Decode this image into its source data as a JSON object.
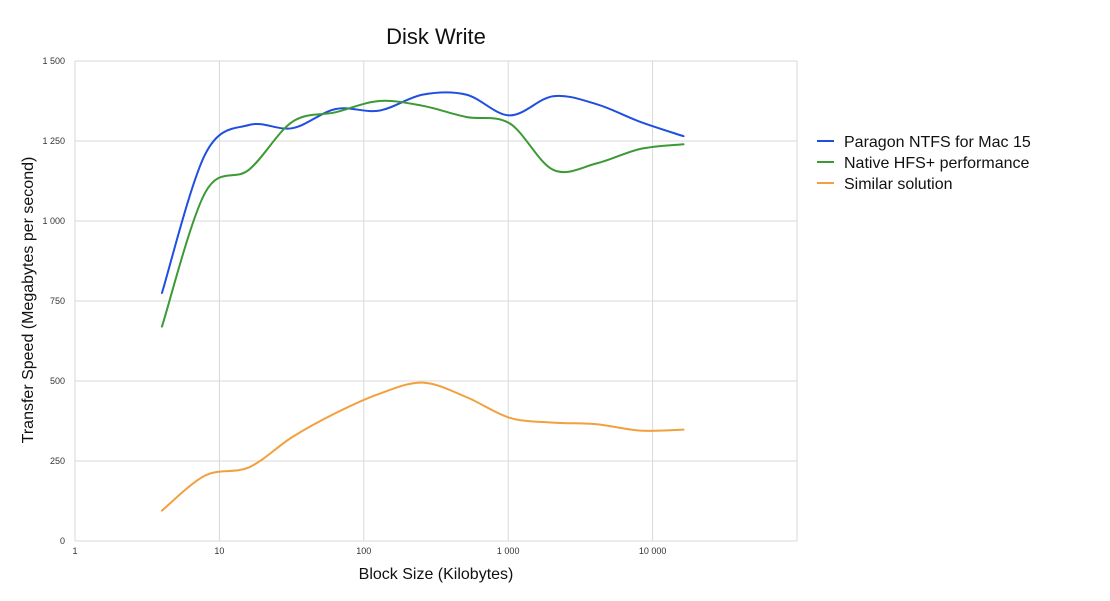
{
  "chart_data": {
    "type": "line",
    "title": "Disk Write",
    "xlabel": "Block Size (Kilobytes)",
    "ylabel": "Transfer Speed (Megabytes per second)",
    "x_scale": "log",
    "xlim": [
      1,
      100000
    ],
    "ylim": [
      0,
      1500
    ],
    "grid": true,
    "legend_position": "right",
    "x_ticks": [
      {
        "value": 1,
        "label": "1"
      },
      {
        "value": 10,
        "label": "10"
      },
      {
        "value": 100,
        "label": "100"
      },
      {
        "value": 1000,
        "label": "1 000"
      },
      {
        "value": 10000,
        "label": "10 000"
      }
    ],
    "x_gridlines": [
      1,
      10,
      100,
      1000,
      10000,
      100000
    ],
    "y_ticks": [
      {
        "value": 0,
        "label": "0"
      },
      {
        "value": 250,
        "label": "250"
      },
      {
        "value": 500,
        "label": "500"
      },
      {
        "value": 750,
        "label": "750"
      },
      {
        "value": 1000,
        "label": "1 000"
      },
      {
        "value": 1250,
        "label": "1 250"
      },
      {
        "value": 1500,
        "label": "1 500"
      }
    ],
    "x": [
      4,
      8,
      16,
      32,
      64,
      128,
      256,
      512,
      1024,
      2048,
      4096,
      8192,
      16384
    ],
    "series": [
      {
        "name": "Paragon NTFS for Mac 15",
        "color": "#1f4fe0",
        "values": [
          775,
          1210,
          1300,
          1290,
          1350,
          1345,
          1395,
          1395,
          1330,
          1390,
          1365,
          1310,
          1265
        ]
      },
      {
        "name": "Native HFS+ performance",
        "color": "#3c9a35",
        "values": [
          670,
          1090,
          1160,
          1310,
          1340,
          1375,
          1360,
          1325,
          1305,
          1160,
          1180,
          1225,
          1240
        ]
      },
      {
        "name": "Similar solution",
        "color": "#f2a03d",
        "values": [
          95,
          205,
          230,
          325,
          400,
          460,
          495,
          450,
          385,
          370,
          365,
          345,
          348
        ]
      }
    ]
  }
}
